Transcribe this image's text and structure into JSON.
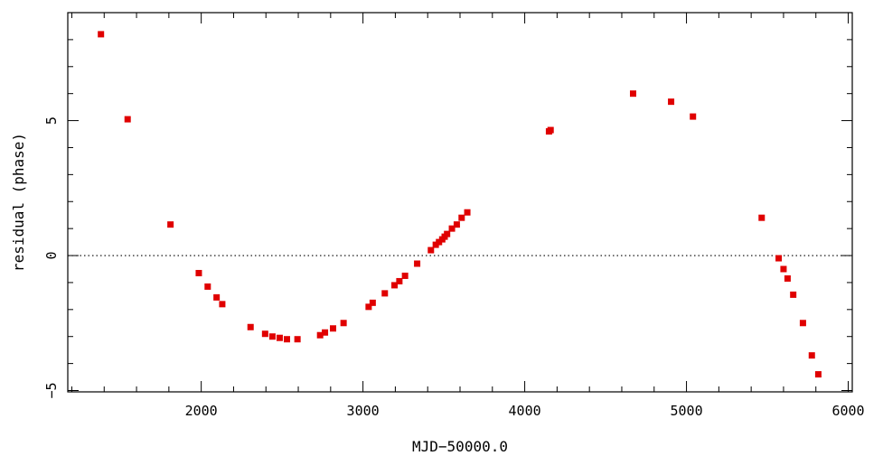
{
  "chart_data": {
    "type": "scatter",
    "title": "",
    "xlabel": "MJD−50000.0",
    "ylabel": "residual (phase)",
    "xlim": [
      1175,
      6025
    ],
    "ylim": [
      -5.05,
      9.0
    ],
    "xticks": [
      {
        "value": 2000,
        "label": "2000"
      },
      {
        "value": 3000,
        "label": "3000"
      },
      {
        "value": 4000,
        "label": "4000"
      },
      {
        "value": 5000,
        "label": "5000"
      },
      {
        "value": 6000,
        "label": "6000"
      }
    ],
    "yticks": [
      {
        "value": -5,
        "label": "−5"
      },
      {
        "value": 0,
        "label": "0"
      },
      {
        "value": 5,
        "label": "5"
      }
    ],
    "reference_line": {
      "y": 0,
      "style": "dotted"
    },
    "marker_color": "#e00000",
    "grid": false,
    "series": [
      {
        "name": "",
        "x": [
          1380,
          1545,
          1810,
          1985,
          2040,
          2095,
          2130,
          2305,
          2395,
          2440,
          2485,
          2530,
          2595,
          2735,
          2765,
          2815,
          2880,
          3035,
          3060,
          3135,
          3195,
          3225,
          3260,
          3335,
          3420,
          3450,
          3470,
          3490,
          3505,
          3520,
          3550,
          3580,
          3610,
          3645,
          4150,
          4160,
          4670,
          4905,
          5040,
          5465,
          5570,
          5600,
          5625,
          5660,
          5720,
          5775,
          5815
        ],
        "y": [
          8.2,
          5.05,
          1.15,
          -0.65,
          -1.15,
          -1.55,
          -1.8,
          -2.65,
          -2.9,
          -3.0,
          -3.05,
          -3.1,
          -3.1,
          -2.95,
          -2.85,
          -2.7,
          -2.5,
          -1.9,
          -1.75,
          -1.4,
          -1.1,
          -0.95,
          -0.75,
          -0.3,
          0.2,
          0.4,
          0.5,
          0.6,
          0.7,
          0.8,
          1.0,
          1.15,
          1.4,
          1.6,
          4.6,
          4.65,
          6.0,
          5.7,
          5.15,
          1.4,
          -0.1,
          -0.5,
          -0.85,
          -1.45,
          -2.5,
          -3.7,
          -4.4
        ]
      }
    ]
  }
}
